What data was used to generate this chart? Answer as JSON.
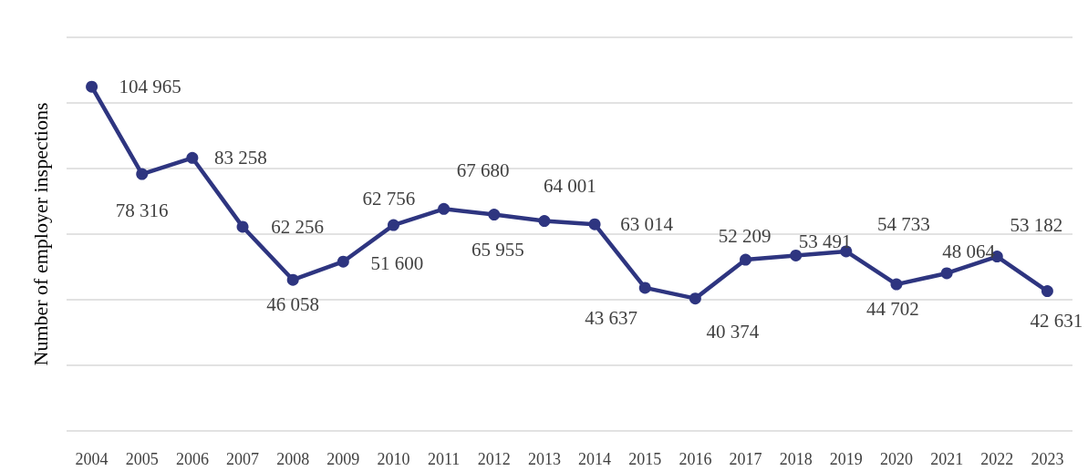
{
  "chart_data": {
    "type": "line",
    "ylabel": "Number of employer inspections",
    "categories": [
      "2004",
      "2005",
      "2006",
      "2007",
      "2008",
      "2009",
      "2010",
      "2011",
      "2012",
      "2013",
      "2014",
      "2015",
      "2016",
      "2017",
      "2018",
      "2019",
      "2020",
      "2021",
      "2022",
      "2023"
    ],
    "series": [
      {
        "color": "#2e3580",
        "values": [
          104965,
          78316,
          83258,
          62256,
          46058,
          51600,
          62756,
          67680,
          65955,
          64001,
          63014,
          43637,
          40374,
          52209,
          53491,
          54733,
          44702,
          48064,
          53182,
          42631
        ],
        "value_labels": [
          "104 965",
          "78 316",
          "83 258",
          "62 256",
          "46 058",
          "51 600",
          "62 756",
          "67 680",
          "65 955",
          "64 001",
          "63 014",
          "43 637",
          "40 374",
          "52 209",
          "53 491",
          "54 733",
          "44 702",
          "48 064",
          "53 182",
          "42 631"
        ]
      }
    ],
    "ylim": [
      0,
      120000
    ],
    "yticks": [
      {
        "value": 0,
        "label": null
      },
      {
        "value": 20000,
        "label": null
      },
      {
        "value": 40000,
        "label": null
      },
      {
        "value": 60000,
        "label": null
      },
      {
        "value": 80000,
        "label": null
      },
      {
        "value": 100000,
        "label": null
      },
      {
        "value": 120000,
        "label": null
      }
    ],
    "tick_labels": "x",
    "grid": "y",
    "marker": "circle",
    "line_style": "solid"
  }
}
